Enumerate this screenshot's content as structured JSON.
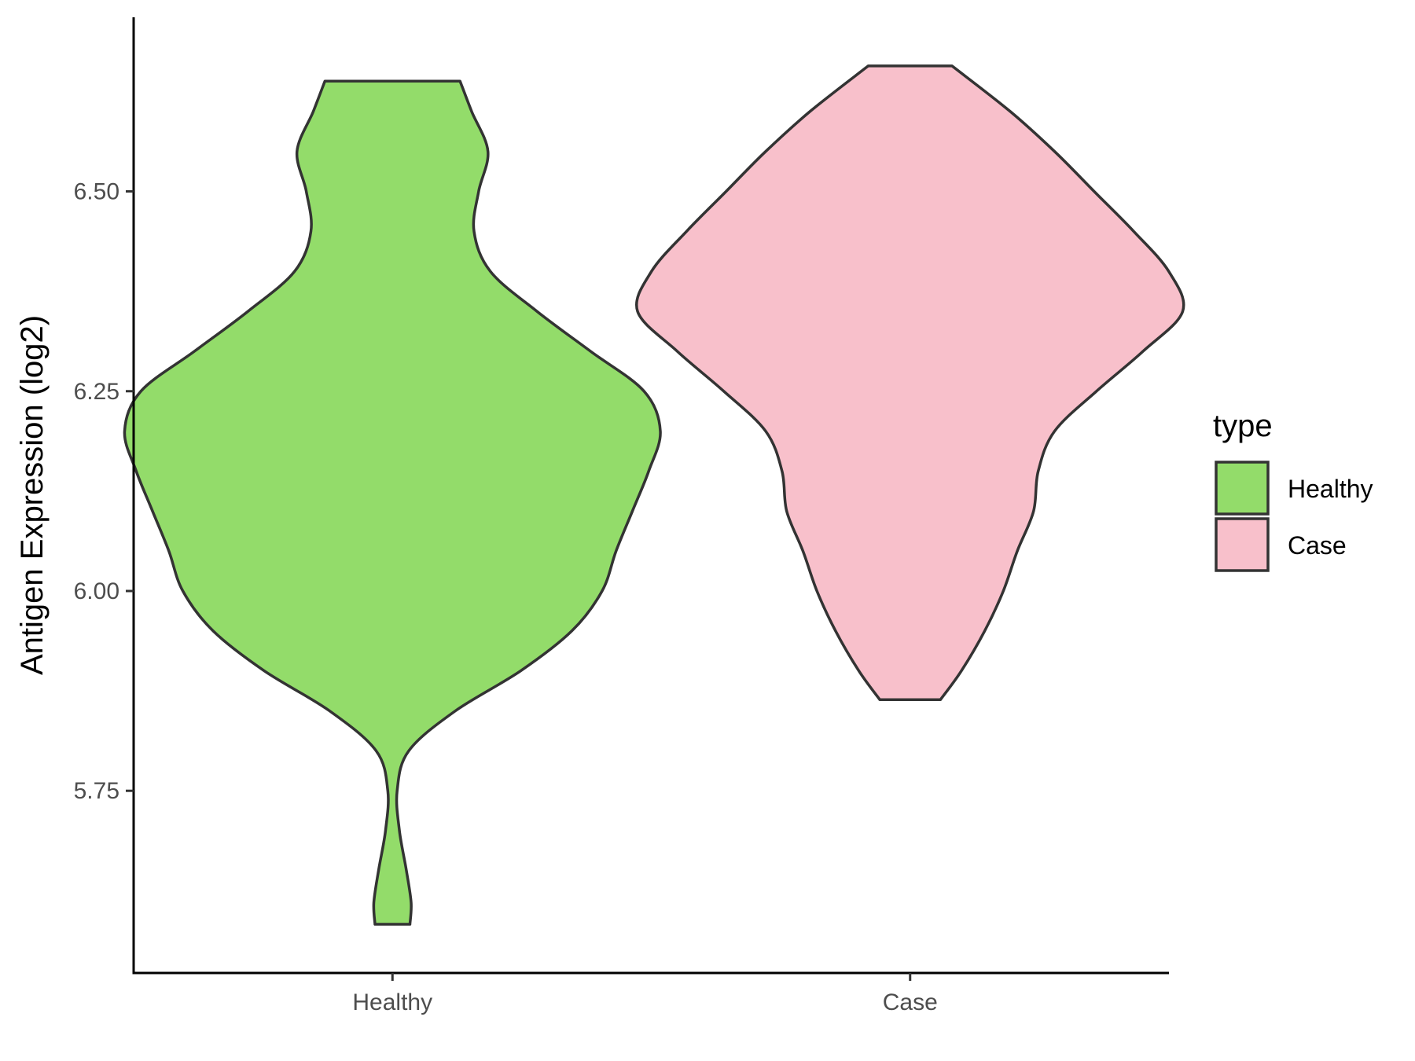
{
  "chart_data": {
    "type": "violin",
    "title": "",
    "xlabel": "",
    "ylabel": "Antigen Expression (log2)",
    "ylim": [
      5.525,
      6.71
    ],
    "yticks": [
      "5.75",
      "6.00",
      "6.25",
      "6.50"
    ],
    "ytick_values": [
      5.75,
      6.0,
      6.25,
      6.5
    ],
    "categories": [
      "Healthy",
      "Case"
    ],
    "grid": false,
    "legend": {
      "title": "type",
      "position": "right",
      "entries": [
        {
          "label": "Healthy",
          "color": "#93dc6a"
        },
        {
          "label": "Case",
          "color": "#f8c0cb"
        }
      ]
    },
    "series": [
      {
        "name": "Healthy",
        "color": "#93dc6a",
        "min": 5.583,
        "max": 6.638,
        "profile": [
          [
            5.583,
            0.075
          ],
          [
            5.61,
            0.08
          ],
          [
            5.65,
            0.06
          ],
          [
            5.7,
            0.03
          ],
          [
            5.75,
            0.02
          ],
          [
            5.8,
            0.07
          ],
          [
            5.85,
            0.27
          ],
          [
            5.9,
            0.55
          ],
          [
            5.95,
            0.77
          ],
          [
            6.0,
            0.9
          ],
          [
            6.05,
            0.96
          ],
          [
            6.1,
            1.03
          ],
          [
            6.15,
            1.1
          ],
          [
            6.2,
            1.15
          ],
          [
            6.25,
            1.08
          ],
          [
            6.3,
            0.85
          ],
          [
            6.35,
            0.62
          ],
          [
            6.4,
            0.42
          ],
          [
            6.45,
            0.35
          ],
          [
            6.5,
            0.37
          ],
          [
            6.55,
            0.41
          ],
          [
            6.6,
            0.34
          ],
          [
            6.638,
            0.29
          ]
        ]
      },
      {
        "name": "Case",
        "color": "#f8c0cb",
        "min": 5.864,
        "max": 6.657,
        "profile": [
          [
            5.864,
            0.13
          ],
          [
            5.9,
            0.22
          ],
          [
            5.95,
            0.32
          ],
          [
            6.0,
            0.4
          ],
          [
            6.05,
            0.46
          ],
          [
            6.1,
            0.53
          ],
          [
            6.15,
            0.55
          ],
          [
            6.2,
            0.62
          ],
          [
            6.25,
            0.8
          ],
          [
            6.3,
            1.0
          ],
          [
            6.35,
            1.17
          ],
          [
            6.4,
            1.11
          ],
          [
            6.45,
            0.96
          ],
          [
            6.5,
            0.79
          ],
          [
            6.55,
            0.62
          ],
          [
            6.6,
            0.43
          ],
          [
            6.657,
            0.18
          ]
        ]
      }
    ]
  }
}
